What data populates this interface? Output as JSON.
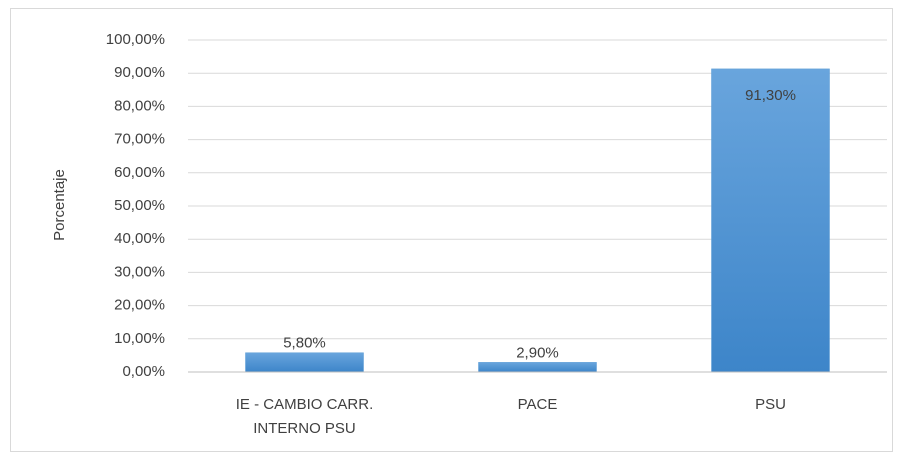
{
  "chart_data": {
    "type": "bar",
    "y_label": "Porcentaje",
    "categories": [
      "IE - CAMBIO CARR. INTERNO PSU",
      "PACE",
      "PSU"
    ],
    "values": [
      5.8,
      2.9,
      91.3
    ],
    "value_labels": [
      "5,80%",
      "2,90%",
      "91,30%"
    ],
    "color": "#5b9bd5",
    "ylim": [
      0,
      100
    ],
    "yticks": [
      {
        "value": 0,
        "label": "0,00%"
      },
      {
        "value": 10,
        "label": "10,00%"
      },
      {
        "value": 20,
        "label": "20,00%"
      },
      {
        "value": 30,
        "label": "30,00%"
      },
      {
        "value": 40,
        "label": "40,00%"
      },
      {
        "value": 50,
        "label": "50,00%"
      },
      {
        "value": 60,
        "label": "60,00%"
      },
      {
        "value": 70,
        "label": "70,00%"
      },
      {
        "value": 80,
        "label": "80,00%"
      },
      {
        "value": 90,
        "label": "90,00%"
      },
      {
        "value": 100,
        "label": "100,00%"
      }
    ],
    "grid": true
  }
}
